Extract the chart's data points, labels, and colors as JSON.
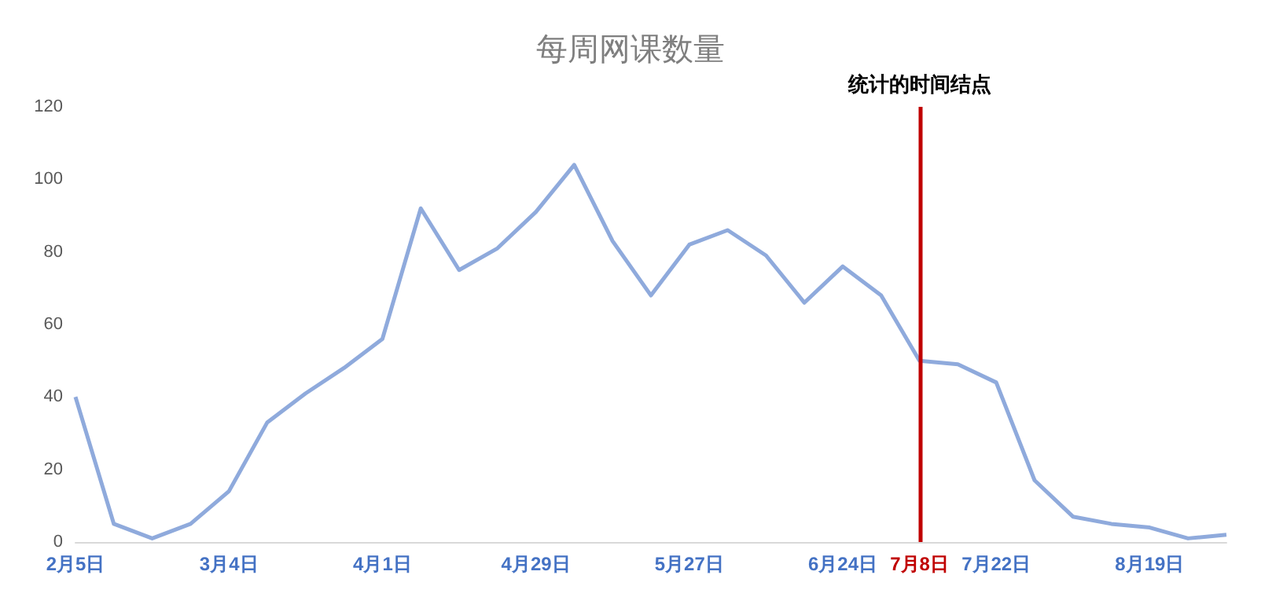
{
  "chart_data": {
    "type": "line",
    "title": "每周网课数量",
    "categories": [
      "2月5日",
      null,
      null,
      null,
      "3月4日",
      null,
      null,
      null,
      "4月1日",
      null,
      null,
      null,
      "4月29日",
      null,
      null,
      null,
      "5月27日",
      null,
      null,
      null,
      "6月24日",
      null,
      "7月8日",
      null,
      "7月22日",
      null,
      null,
      null,
      "8月19日",
      null,
      null
    ],
    "series": [
      {
        "color": "#8faadc",
        "values": [
          40,
          5,
          1,
          5,
          14,
          33,
          41,
          48,
          56,
          92,
          75,
          81,
          91,
          104,
          83,
          68,
          82,
          86,
          79,
          66,
          76,
          68,
          50,
          49,
          44,
          17,
          7,
          5,
          4,
          1,
          2
        ]
      }
    ],
    "ylim": [
      0,
      120
    ],
    "yticks": [
      0,
      20,
      40,
      60,
      80,
      100,
      120
    ],
    "grid": false,
    "marker": "none",
    "line_style": "solid",
    "ref_lines": [
      {
        "axis": "x",
        "value": "7月8日",
        "label": "统计的时间结点",
        "color": "#c00000"
      }
    ]
  }
}
